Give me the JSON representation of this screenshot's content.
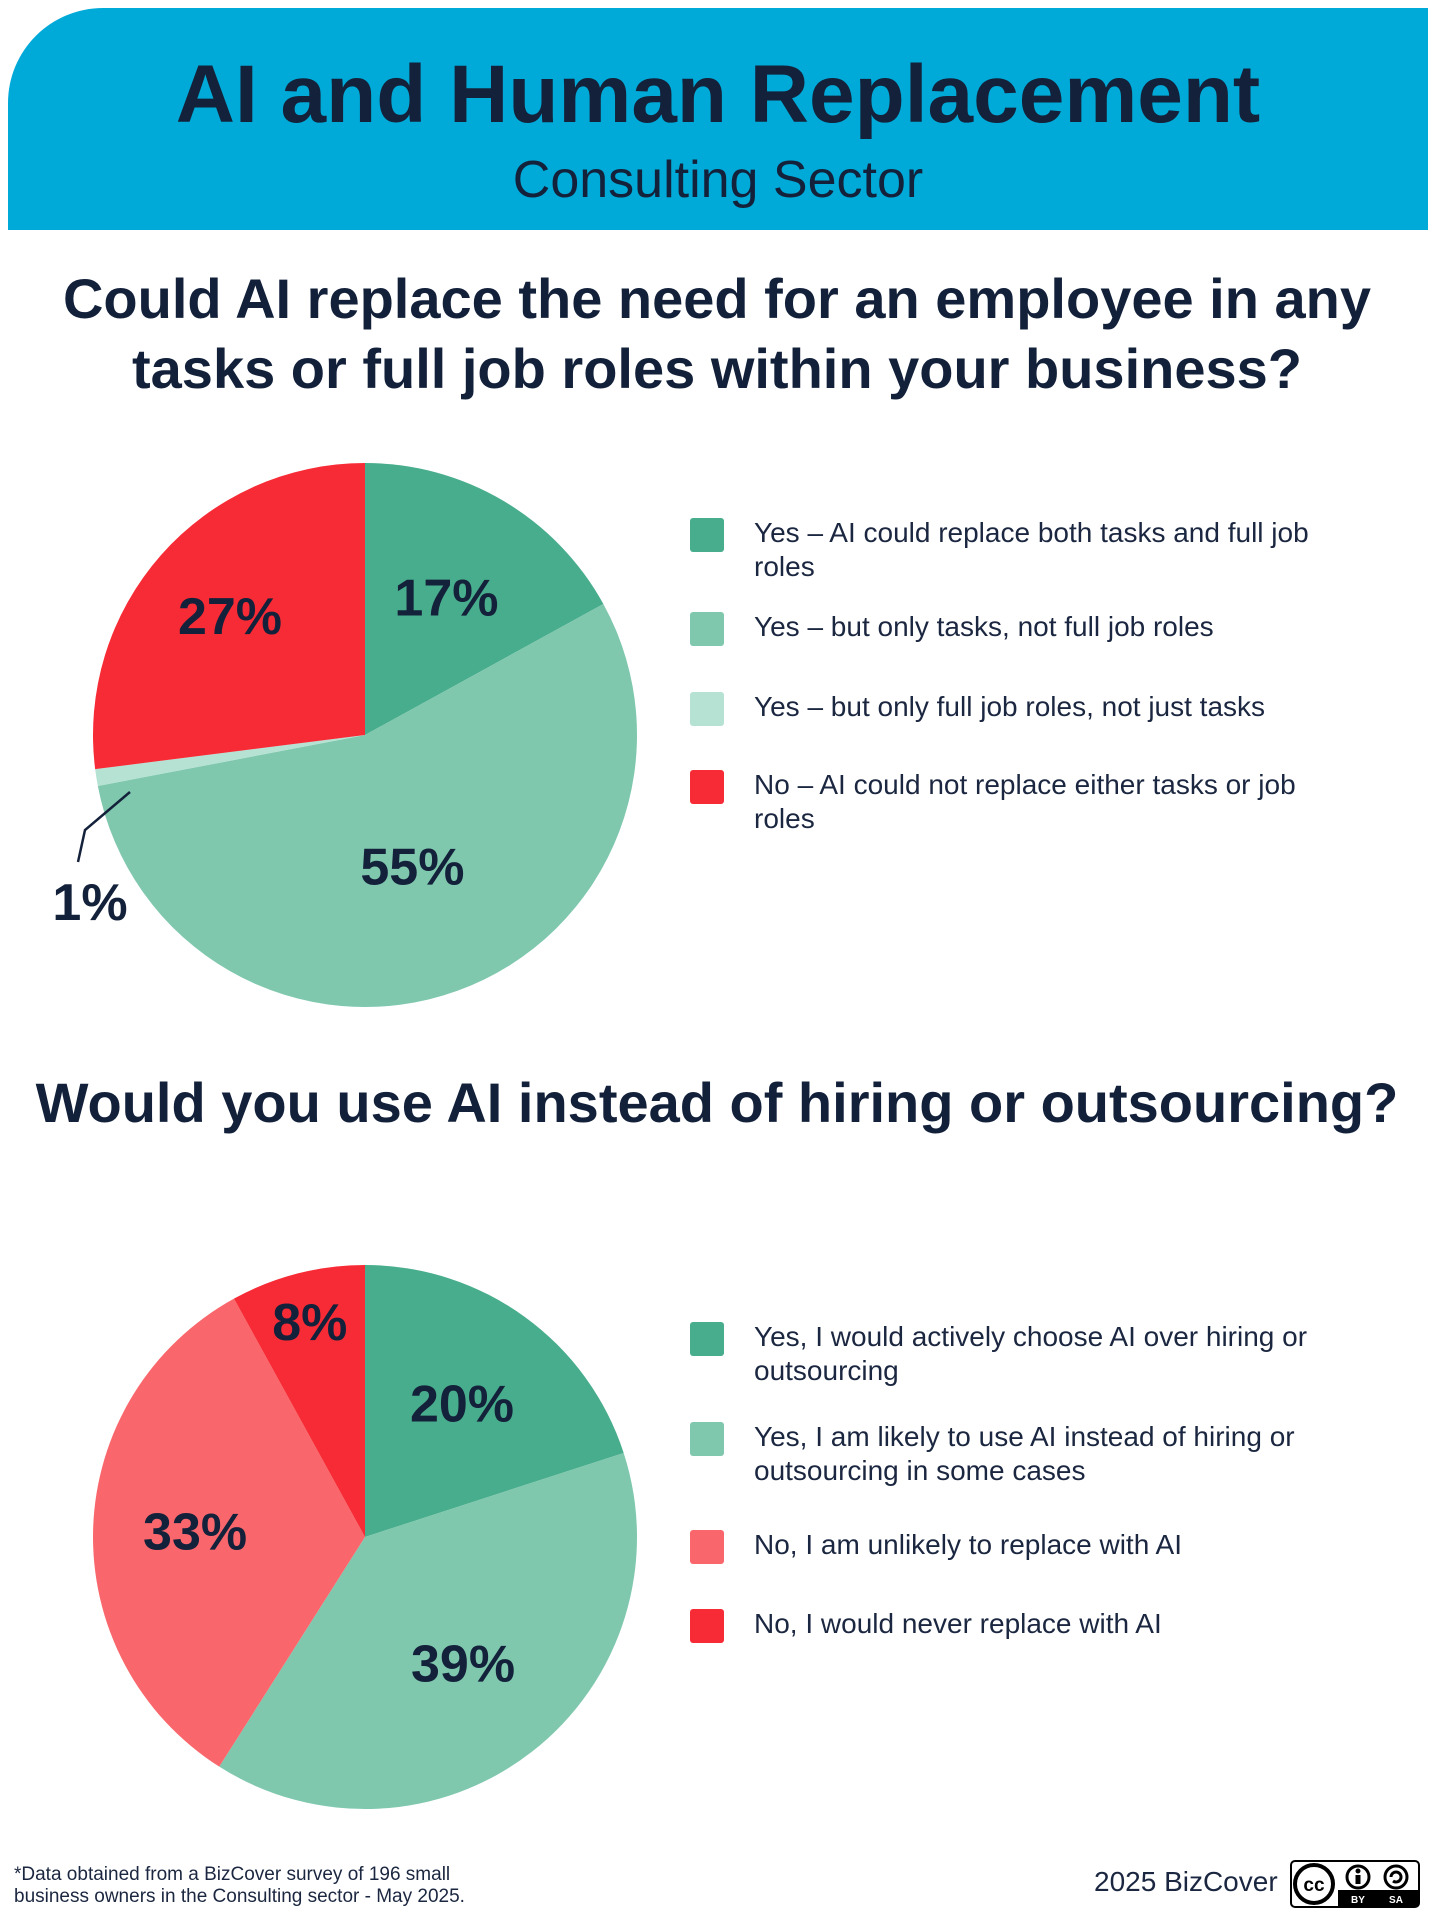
{
  "header": {
    "title": "AI and Human Replacement",
    "subtitle": "Consulting Sector"
  },
  "colors": {
    "header_bg": "#00aad8",
    "dark_green": "#48ad8c",
    "mid_green": "#7fc8ae",
    "light_green": "#b5e2d3",
    "red": "#f72b35",
    "salmon": "#f9676c"
  },
  "question1": {
    "text": "Could AI replace the need for an employee in any tasks or full job roles within your business?"
  },
  "question2": {
    "text": "Would you use AI instead of hiring or outsourcing?"
  },
  "chart_data": [
    {
      "type": "pie",
      "title": "Could AI replace the need for an employee in any tasks or full job roles within your business?",
      "series": [
        {
          "label": "Yes – AI could replace both tasks and full job roles",
          "value": 17,
          "display": "17%",
          "color": "#48ad8c"
        },
        {
          "label": "Yes – but only tasks, not full job roles",
          "value": 55,
          "display": "55%",
          "color": "#7fc8ae"
        },
        {
          "label": "Yes – but only full job roles, not just tasks",
          "value": 1,
          "display": "1%",
          "color": "#b5e2d3"
        },
        {
          "label": "No – AI could not replace either tasks or job roles",
          "value": 27,
          "display": "27%",
          "color": "#f72b35"
        }
      ],
      "legend_position": "right"
    },
    {
      "type": "pie",
      "title": "Would you use AI instead of hiring or outsourcing?",
      "series": [
        {
          "label": "Yes, I would actively choose AI over hiring or outsourcing",
          "value": 20,
          "display": "20%",
          "color": "#48ad8c"
        },
        {
          "label": "Yes, I am likely to use AI instead of hiring or outsourcing in some cases",
          "value": 39,
          "display": "39%",
          "color": "#7fc8ae"
        },
        {
          "label": "No, I am unlikely to replace with AI",
          "value": 33,
          "display": "33%",
          "color": "#f9676c"
        },
        {
          "label": "No, I would never replace with AI",
          "value": 8,
          "display": "8%",
          "color": "#f72b35"
        }
      ],
      "legend_position": "right"
    }
  ],
  "footer": {
    "footnote_line1": "*Data obtained from a BizCover survey of 196 small",
    "footnote_line2": "business owners in the Consulting sector - May 2025.",
    "brand": "2025 BizCover",
    "license_by": "BY",
    "license_sa": "SA",
    "license_icon": "cc-by-sa-icon"
  }
}
